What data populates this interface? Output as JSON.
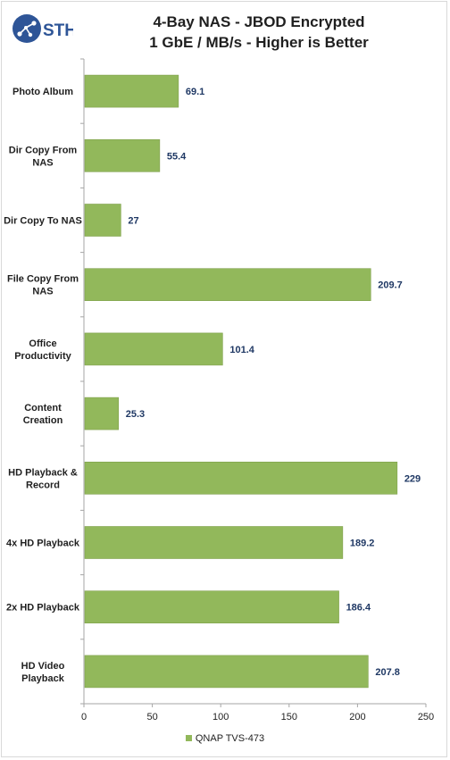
{
  "logo": {
    "text": "STH",
    "icon": "sth-network-logo-icon"
  },
  "chart_data": {
    "type": "bar",
    "orientation": "horizontal",
    "title": "4-Bay NAS - JBOD Encrypted",
    "subtitle": "1 GbE / MB/s - Higher is Better",
    "categories": [
      "Photo Album",
      "Dir Copy From NAS",
      "Dir Copy To NAS",
      "File Copy From NAS",
      "Office Productivity",
      "Content Creation",
      "HD Playback & Record",
      "4x HD Playback",
      "2x HD Playback",
      "HD Video Playback"
    ],
    "series": [
      {
        "name": "QNAP TVS-473",
        "values": [
          69.1,
          55.4,
          27,
          209.7,
          101.4,
          25.3,
          229,
          189.2,
          186.4,
          207.8
        ]
      }
    ],
    "value_labels": [
      "69.1",
      "55.4",
      "27",
      "209.7",
      "101.4",
      "25.3",
      "229",
      "189.2",
      "186.4",
      "207.8"
    ],
    "xlim": [
      0,
      250
    ],
    "xticks": [
      0,
      50,
      100,
      150,
      200,
      250
    ],
    "grid": false,
    "legend_position": "bottom",
    "bar_color": "#92b85b"
  }
}
